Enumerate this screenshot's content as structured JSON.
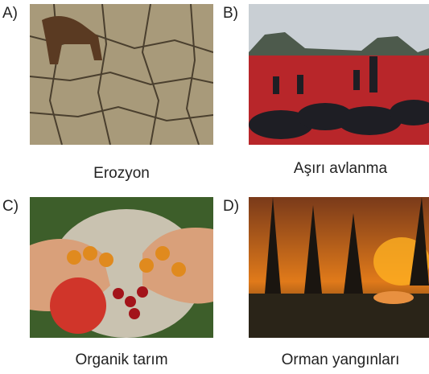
{
  "items": [
    {
      "label": "A)",
      "caption": "Erozyon"
    },
    {
      "label": "B)",
      "caption": "Aşırı avlanma"
    },
    {
      "label": "C)",
      "caption": "Organik tarım"
    },
    {
      "label": "D)",
      "caption": "Orman yangınları"
    }
  ]
}
